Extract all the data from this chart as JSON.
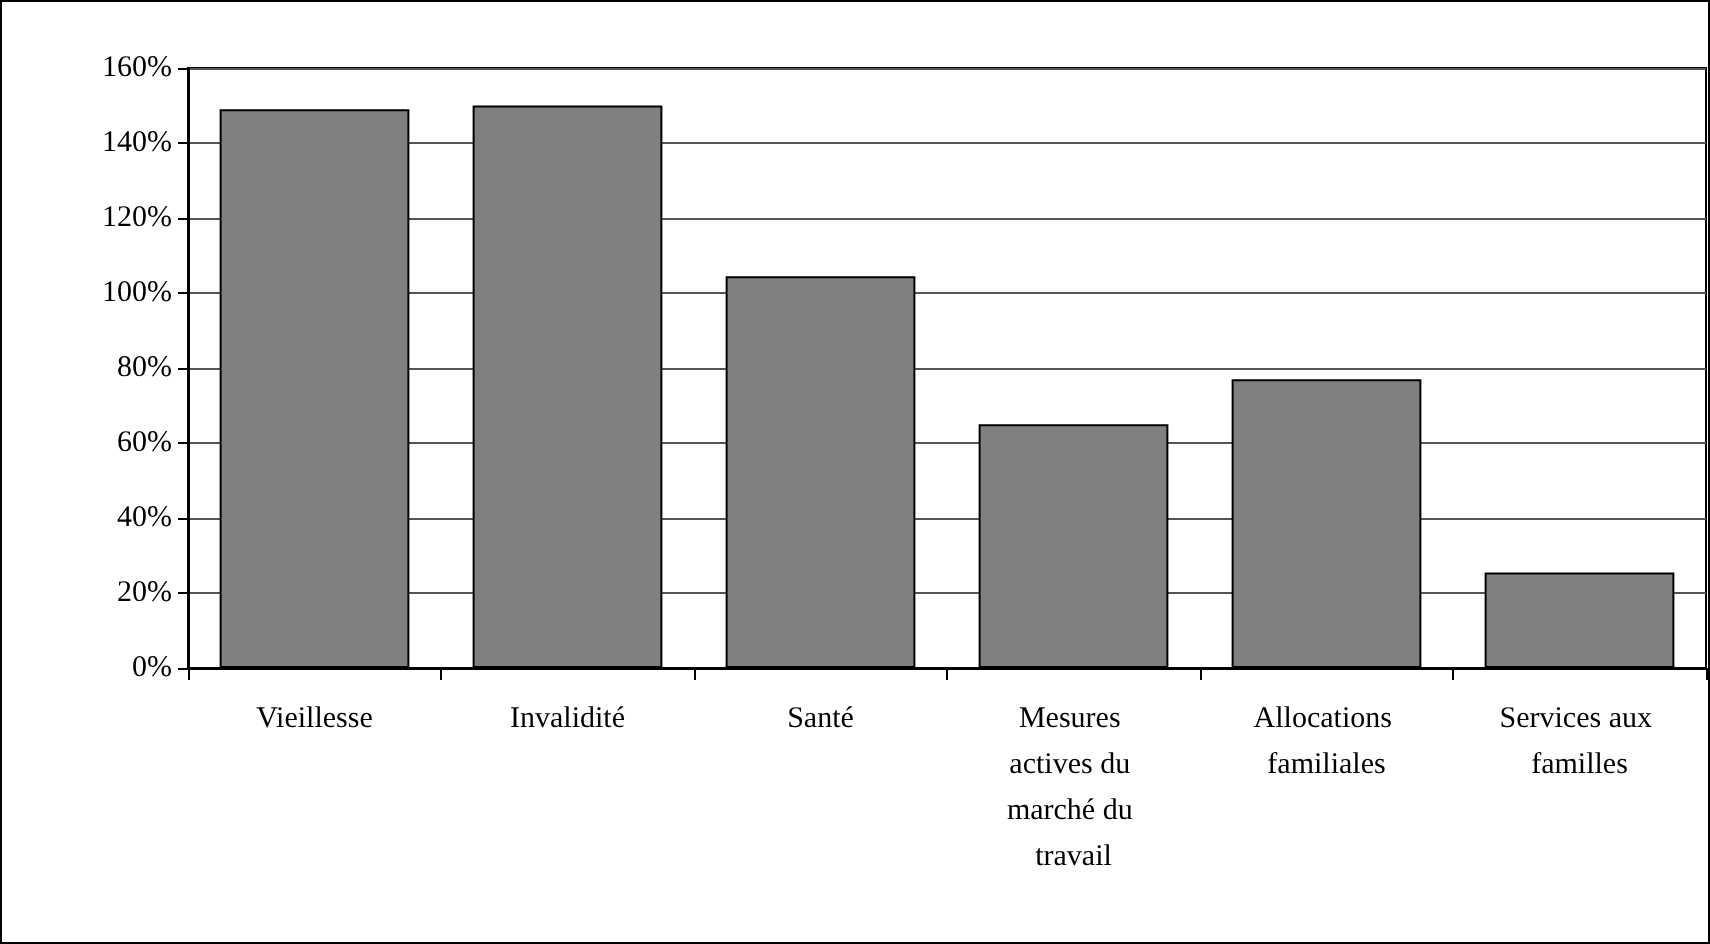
{
  "chart_data": {
    "type": "bar",
    "categories": [
      "Vieillesse",
      "Invalidité",
      "Santé",
      "Mesures actives du marché du travail",
      "Allocations familiales",
      "Services aux familles"
    ],
    "values": [
      149,
      150,
      104.5,
      65,
      77,
      25.5
    ],
    "color": "#808080",
    "ylim": [
      0,
      160
    ],
    "yticks": [
      {
        "value": 0,
        "label": "0%"
      },
      {
        "value": 20,
        "label": "20%"
      },
      {
        "value": 40,
        "label": "40%"
      },
      {
        "value": 60,
        "label": "60%"
      },
      {
        "value": 80,
        "label": "80%"
      },
      {
        "value": 100,
        "label": "100%"
      },
      {
        "value": 120,
        "label": "120%"
      },
      {
        "value": 140,
        "label": "140%"
      },
      {
        "value": 160,
        "label": "160%"
      }
    ],
    "grid": true
  }
}
